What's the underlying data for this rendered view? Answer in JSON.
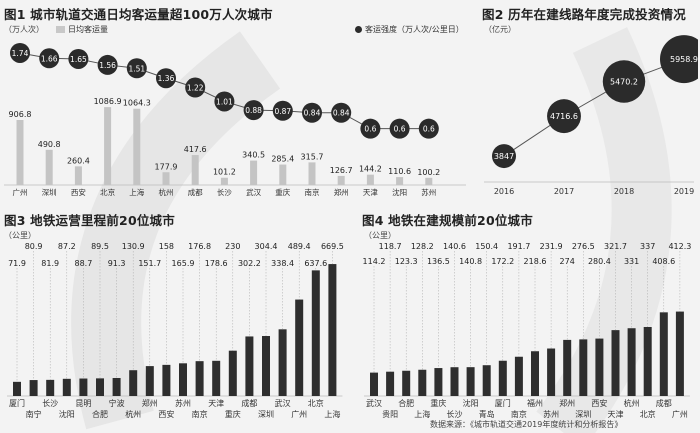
{
  "source_label": "数据来源：《城市轨道交通2019年度统计和分析报告》",
  "chart_data": [
    {
      "id": "fig1",
      "type": "bar",
      "title": "图1 城市轨道交通日均客运量超100万人次城市",
      "ylabel": "（万人次）",
      "legend_bar": "日均客运量",
      "legend_line": "客运强度（万人次/公里日）",
      "categories": [
        "广州",
        "深圳",
        "西安",
        "北京",
        "上海",
        "杭州",
        "成都",
        "长沙",
        "武汉",
        "重庆",
        "南京",
        "郑州",
        "天津",
        "沈阳",
        "苏州"
      ],
      "series": [
        {
          "name": "日均客运量",
          "values": [
            906.8,
            490.8,
            260.4,
            1086.9,
            1064.3,
            177.9,
            417.6,
            101.2,
            340.5,
            285.4,
            315.7,
            126.7,
            144.2,
            110.6,
            100.2
          ]
        },
        {
          "name": "客运强度（万人次/公里日）",
          "values": [
            1.74,
            1.66,
            1.65,
            1.56,
            1.51,
            1.36,
            1.22,
            1.01,
            0.88,
            0.87,
            0.84,
            0.84,
            0.6,
            0.6,
            0.6
          ]
        }
      ],
      "value_labels": [
        "906.8",
        "490.8",
        "260.4",
        "1086.9",
        "1064.3",
        "177.9",
        "417.6",
        "101.2",
        "340.5",
        "285.4",
        "315.7",
        "126.7",
        "144.2",
        "110.6",
        "100.2"
      ],
      "line_labels": [
        "1.74",
        "1.66",
        "1.65",
        "1.56",
        "1.51",
        "1.36",
        "1.22",
        "1.01",
        "0.88",
        "0.87",
        "0.84",
        "0.84",
        "0.6",
        "0.6",
        "0.6"
      ],
      "ylim": [
        0,
        1200
      ]
    },
    {
      "id": "fig2",
      "type": "scatter",
      "title": "图2 历年在建线路年度完成投资情况",
      "ylabel": "（亿元）",
      "x": [
        "2016",
        "2017",
        "2018",
        "2019"
      ],
      "values": [
        3847,
        4716.6,
        5470.2,
        5958.9
      ],
      "value_labels": [
        "3847",
        "4716.6",
        "5470.2",
        "5958.9"
      ],
      "ylim": [
        3500,
        6200
      ]
    },
    {
      "id": "fig3",
      "type": "bar",
      "title": "图3 地铁运营里程前20位城市",
      "ylabel": "（公里）",
      "categories": [
        "厦门",
        "南宁",
        "长沙",
        "沈阳",
        "昆明",
        "合肥",
        "宁波",
        "杭州",
        "郑州",
        "西安",
        "苏州",
        "南京",
        "天津",
        "重庆",
        "成都",
        "深圳",
        "武汉",
        "广州",
        "北京",
        "上海"
      ],
      "values": [
        71.9,
        80.9,
        81.9,
        87.2,
        88.7,
        89.5,
        91.3,
        130.9,
        151.7,
        158,
        165.9,
        176.8,
        178.6,
        230,
        302.2,
        304.4,
        338.4,
        489.4,
        637.6,
        669.5
      ],
      "value_labels": [
        "71.9",
        "80.9",
        "81.9",
        "87.2",
        "88.7",
        "89.5",
        "91.3",
        "130.9",
        "151.7",
        "158",
        "165.9",
        "176.8",
        "178.6",
        "230",
        "302.2",
        "304.4",
        "338.4",
        "489.4",
        "637.6",
        "669.5"
      ],
      "ylim": [
        0,
        680
      ]
    },
    {
      "id": "fig4",
      "type": "bar",
      "title": "图4 地铁在建规模前20位城市",
      "ylabel": "（公里）",
      "categories": [
        "武汉",
        "贵阳",
        "合肥",
        "上海",
        "重庆",
        "长沙",
        "沈阳",
        "青岛",
        "厦门",
        "南京",
        "福州",
        "苏州",
        "郑州",
        "深圳",
        "西安",
        "天津",
        "杭州",
        "北京",
        "成都",
        "广州"
      ],
      "values": [
        114.2,
        118.7,
        123.3,
        128.2,
        136.5,
        140.6,
        140.8,
        150.4,
        172.2,
        191.7,
        218.6,
        231.9,
        274,
        276.5,
        280.4,
        321.7,
        331,
        337,
        408.6,
        412.3
      ],
      "value_labels": [
        "114.2",
        "118.7",
        "123.3",
        "128.2",
        "136.5",
        "140.6",
        "140.8",
        "150.4",
        "172.2",
        "191.7",
        "218.6",
        "231.9",
        "274",
        "276.5",
        "280.4",
        "321.7",
        "331",
        "337",
        "408.6",
        "412.3"
      ],
      "ylim": [
        0,
        420
      ]
    }
  ]
}
